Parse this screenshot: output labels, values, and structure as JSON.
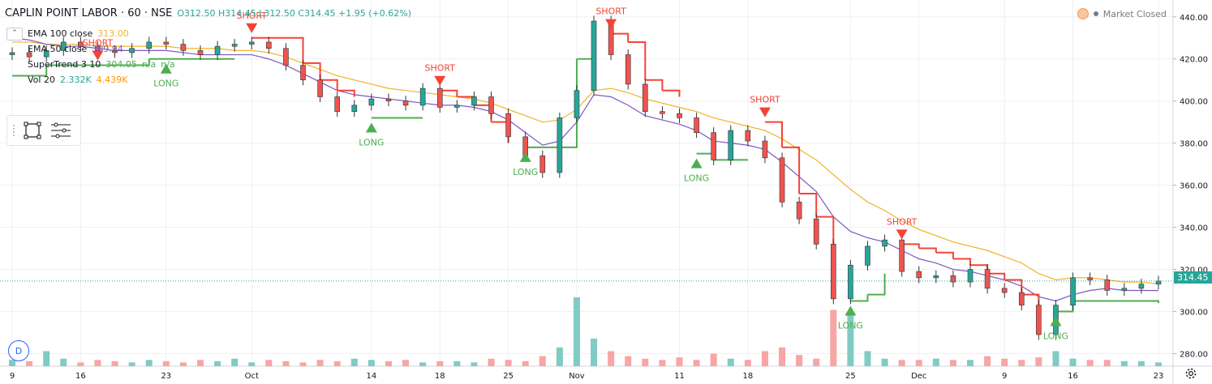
{
  "header": {
    "title": "CAPLIN POINT LABOR · 60 · NSE",
    "ohlc": "O312.50  H314.45  L312.50  C314.45  +1.95 (+0.62%)"
  },
  "legend": [
    {
      "label": "EMA 100 close",
      "value": "313.00",
      "color": "#f0b429"
    },
    {
      "label": "EMA 50 close",
      "value": "309.94",
      "color": "#7e57c2"
    },
    {
      "label": "SuperTrend 3 10",
      "value": "304.05",
      "value2": "n/a",
      "value3": "n/a",
      "color": "#4caf50"
    },
    {
      "label": "Vol 20",
      "value": "2.332K",
      "value2": "4.439K",
      "color": "#ff9800"
    }
  ],
  "status": {
    "label": "Market Closed"
  },
  "period_button": "D",
  "last_price": "314.45",
  "colors": {
    "up": "#26a69a",
    "down": "#ef5350",
    "supertrend_up": "#4caf50",
    "supertrend_down": "#f44336",
    "ema100": "#f0b429",
    "ema50": "#7e57c2",
    "grid": "#eef0f3"
  },
  "chart_data": {
    "type": "line",
    "title": "CAPLIN POINT LABOR · 60 · NSE",
    "y_axis": {
      "ticks": [
        280,
        300,
        320,
        340,
        360,
        380,
        400,
        420,
        440
      ],
      "ylim": [
        274,
        448
      ]
    },
    "x_axis": {
      "ticks": [
        {
          "label": "9",
          "i": 0
        },
        {
          "label": "16",
          "i": 4
        },
        {
          "label": "23",
          "i": 9
        },
        {
          "label": "Oct",
          "i": 14
        },
        {
          "label": "14",
          "i": 21
        },
        {
          "label": "18",
          "i": 25
        },
        {
          "label": "25",
          "i": 29
        },
        {
          "label": "Nov",
          "i": 33
        },
        {
          "label": "11",
          "i": 39
        },
        {
          "label": "18",
          "i": 43
        },
        {
          "label": "25",
          "i": 49
        },
        {
          "label": "Dec",
          "i": 53
        },
        {
          "label": "9",
          "i": 58
        },
        {
          "label": "16",
          "i": 62
        },
        {
          "label": "23",
          "i": 67
        }
      ],
      "n_points": 68
    },
    "close": [
      423,
      421,
      424,
      428,
      426,
      424,
      423,
      425,
      428,
      427,
      424,
      422,
      426,
      427,
      428,
      425,
      417,
      410,
      402,
      395,
      398,
      401,
      400,
      398,
      406,
      397,
      398,
      402,
      394,
      383,
      374,
      366,
      392,
      405,
      438,
      422,
      408,
      395,
      394,
      392,
      385,
      372,
      386,
      381,
      373,
      352,
      344,
      332,
      306,
      322,
      331,
      334,
      319,
      316,
      317,
      314,
      320,
      311,
      309,
      303,
      289,
      303,
      316,
      315,
      310,
      311,
      313,
      314.45
    ],
    "ema50": [
      430,
      429,
      427,
      426,
      426,
      425,
      424,
      424,
      424,
      424,
      423,
      422,
      422,
      422,
      422,
      420,
      417,
      413,
      409,
      405,
      403,
      402,
      401,
      400,
      399,
      398,
      398,
      397,
      395,
      391,
      385,
      379,
      381,
      390,
      403,
      402,
      398,
      393,
      391,
      389,
      386,
      381,
      380,
      379,
      377,
      371,
      364,
      357,
      345,
      338,
      335,
      333,
      329,
      325,
      323,
      320,
      319,
      317,
      315,
      312,
      307,
      305,
      308,
      310,
      311,
      310,
      310,
      309.94
    ],
    "ema100": [
      428,
      428,
      427,
      427,
      427,
      426,
      426,
      426,
      426,
      426,
      425,
      425,
      425,
      424,
      424,
      423,
      421,
      418,
      415,
      412,
      410,
      408,
      406,
      405,
      404,
      403,
      402,
      401,
      399,
      396,
      393,
      390,
      391,
      396,
      405,
      406,
      404,
      401,
      399,
      397,
      395,
      392,
      390,
      388,
      386,
      382,
      377,
      372,
      365,
      358,
      352,
      348,
      343,
      339,
      336,
      333,
      331,
      329,
      326,
      323,
      318,
      315,
      316,
      316,
      315,
      314,
      314,
      313.0
    ],
    "supertrend": [
      412,
      412,
      417,
      417,
      417,
      417,
      417,
      417,
      420,
      420,
      420,
      420,
      420,
      420,
      430,
      430,
      430,
      418,
      410,
      405,
      402,
      392,
      392,
      392,
      392,
      405,
      402,
      398,
      390,
      380,
      378,
      378,
      378,
      420,
      434,
      432,
      428,
      410,
      405,
      402,
      375,
      372,
      372,
      372,
      390,
      378,
      356,
      345,
      318,
      305,
      308,
      318,
      332,
      330,
      328,
      325,
      322,
      318,
      315,
      308,
      300,
      300,
      305,
      305,
      305,
      305,
      305,
      304.05
    ],
    "supertrend_trend": [
      "up",
      "up",
      "up",
      "up",
      "up",
      "up",
      "up",
      "up",
      "up",
      "up",
      "up",
      "up",
      "up",
      "up",
      "down",
      "down",
      "down",
      "down",
      "down",
      "down",
      "down",
      "up",
      "up",
      "up",
      "up",
      "down",
      "down",
      "down",
      "down",
      "down",
      "up",
      "up",
      "up",
      "up",
      "up",
      "down",
      "down",
      "down",
      "down",
      "down",
      "up",
      "up",
      "up",
      "up",
      "down",
      "down",
      "down",
      "down",
      "down",
      "up",
      "up",
      "up",
      "down",
      "down",
      "down",
      "down",
      "down",
      "down",
      "down",
      "down",
      "down",
      "up",
      "up",
      "up",
      "up",
      "up",
      "up",
      "up"
    ],
    "volume_relative": [
      0.05,
      0.04,
      0.12,
      0.06,
      0.03,
      0.05,
      0.04,
      0.03,
      0.05,
      0.04,
      0.03,
      0.05,
      0.04,
      0.06,
      0.03,
      0.05,
      0.04,
      0.03,
      0.05,
      0.04,
      0.06,
      0.05,
      0.04,
      0.05,
      0.03,
      0.04,
      0.04,
      0.03,
      0.06,
      0.05,
      0.04,
      0.08,
      0.15,
      0.55,
      0.22,
      0.12,
      0.08,
      0.06,
      0.05,
      0.07,
      0.05,
      0.1,
      0.06,
      0.05,
      0.12,
      0.15,
      0.09,
      0.06,
      0.45,
      0.42,
      0.12,
      0.06,
      0.05,
      0.05,
      0.06,
      0.05,
      0.05,
      0.08,
      0.06,
      0.05,
      0.07,
      0.12,
      0.06,
      0.05,
      0.05,
      0.04,
      0.04,
      0.03
    ],
    "signals": [
      {
        "type": "SHORT",
        "i": 5
      },
      {
        "type": "LONG",
        "i": 9
      },
      {
        "type": "SHORT",
        "i": 14
      },
      {
        "type": "LONG",
        "i": 21
      },
      {
        "type": "SHORT",
        "i": 25
      },
      {
        "type": "LONG",
        "i": 30
      },
      {
        "type": "SHORT",
        "i": 35
      },
      {
        "type": "LONG",
        "i": 40
      },
      {
        "type": "SHORT",
        "i": 44
      },
      {
        "type": "LONG",
        "i": 49
      },
      {
        "type": "SHORT",
        "i": 52
      },
      {
        "type": "LONG",
        "i": 61
      }
    ]
  }
}
